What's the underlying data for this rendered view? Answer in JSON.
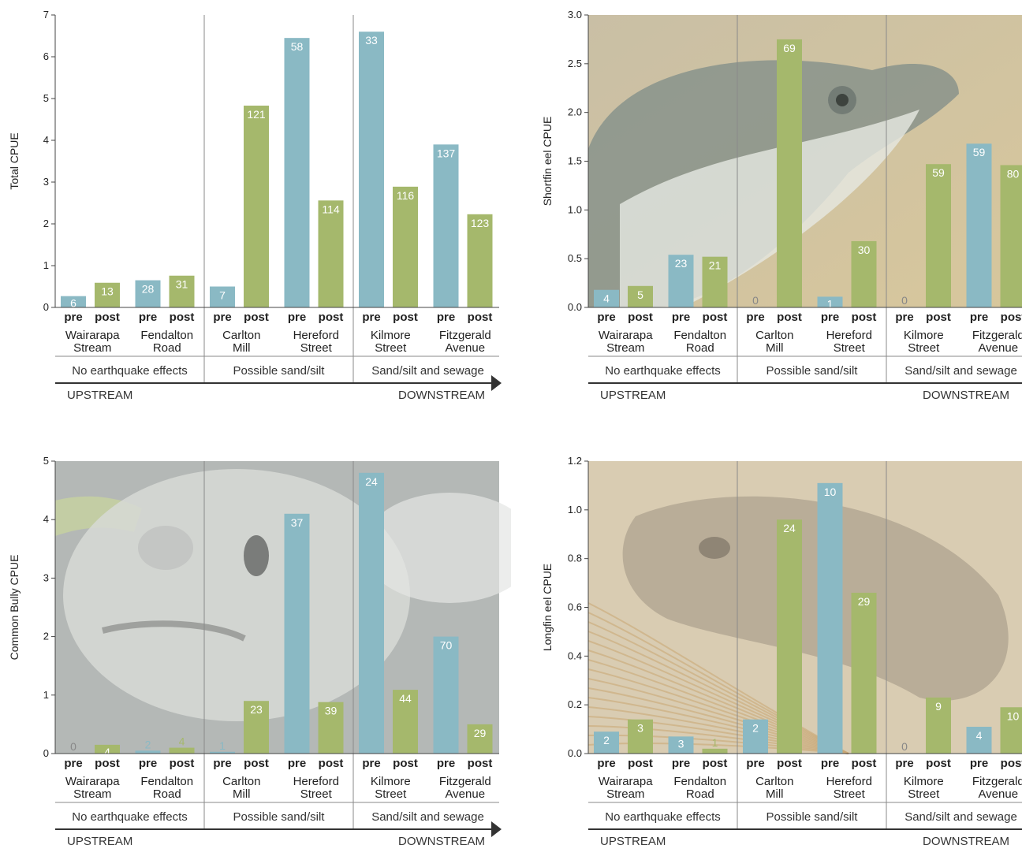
{
  "layout_labels": {
    "pre": "pre",
    "post": "post",
    "sites": [
      [
        "Wairarapa",
        "Stream"
      ],
      [
        "Fendalton",
        "Road"
      ],
      [
        "Carlton",
        "Mill"
      ],
      [
        "Hereford",
        "Street"
      ],
      [
        "Kilmore",
        "Street"
      ],
      [
        "Fitzgerald",
        "Avenue"
      ]
    ],
    "groups": [
      "No earthquake effects",
      "Possible sand/silt",
      "Sand/silt and sewage"
    ],
    "upstream": "UPSTREAM",
    "downstream": "DOWNSTREAM"
  },
  "colors": {
    "pre": "#8ab9c4",
    "post": "#a5b86c",
    "axis": "#444444",
    "divider": "#8a8a8a",
    "tick_text": "#222222",
    "value_text": "#ffffff",
    "zero_value_text": "#888888"
  },
  "chart_data": [
    {
      "type": "bar",
      "id": "total",
      "ylabel": "Total CPUE",
      "ylim": [
        0,
        7
      ],
      "yticks": [
        "0",
        "1",
        "2",
        "3",
        "4",
        "5",
        "6",
        "7"
      ],
      "ytick_values": [
        0,
        1,
        2,
        3,
        4,
        5,
        6,
        7
      ],
      "background_photo": "",
      "categories": [
        "Wairarapa Stream",
        "Fendalton Road",
        "Carlton Mill",
        "Hereford Street",
        "Kilmore Street",
        "Fitzgerald Avenue"
      ],
      "series": [
        {
          "name": "pre",
          "values": [
            0.27,
            0.65,
            0.5,
            6.45,
            6.6,
            3.9
          ],
          "labels": [
            "6",
            "28",
            "7",
            "58",
            "33",
            "137"
          ]
        },
        {
          "name": "post",
          "values": [
            0.59,
            0.76,
            4.83,
            2.56,
            2.89,
            2.23
          ],
          "labels": [
            "13",
            "31",
            "121",
            "114",
            "116",
            "123"
          ]
        }
      ]
    },
    {
      "type": "bar",
      "id": "shortfin",
      "ylabel": "Shortfin eel CPUE",
      "ylim": [
        0,
        3.0
      ],
      "yticks": [
        "0.0",
        "0.5",
        "1.0",
        "1.5",
        "2.0",
        "2.5",
        "3.0"
      ],
      "ytick_values": [
        0,
        0.5,
        1.0,
        1.5,
        2.0,
        2.5,
        3.0
      ],
      "background_photo": "eel-head-photo",
      "categories": [
        "Wairarapa Stream",
        "Fendalton Road",
        "Carlton Mill",
        "Hereford Street",
        "Kilmore Street",
        "Fitzgerald Avenue"
      ],
      "series": [
        {
          "name": "pre",
          "values": [
            0.18,
            0.54,
            0,
            0.11,
            0,
            1.68
          ],
          "labels": [
            "4",
            "23",
            "0",
            "1",
            "0",
            "59"
          ]
        },
        {
          "name": "post",
          "values": [
            0.22,
            0.52,
            2.75,
            0.68,
            1.47,
            1.46
          ],
          "labels": [
            "5",
            "21",
            "69",
            "30",
            "59",
            "80"
          ]
        }
      ]
    },
    {
      "type": "bar",
      "id": "bully",
      "ylabel": "Common Bully CPUE",
      "ylim": [
        0,
        5
      ],
      "yticks": [
        "0",
        "1",
        "2",
        "3",
        "4",
        "5"
      ],
      "ytick_values": [
        0,
        1,
        2,
        3,
        4,
        5
      ],
      "background_photo": "bully-fish-photo",
      "categories": [
        "Wairarapa Stream",
        "Fendalton Road",
        "Carlton Mill",
        "Hereford Street",
        "Kilmore Street",
        "Fitzgerald Avenue"
      ],
      "series": [
        {
          "name": "pre",
          "values": [
            0,
            0.05,
            0.03,
            4.1,
            4.8,
            2.0
          ],
          "labels": [
            "0",
            "2",
            "1",
            "37",
            "24",
            "70"
          ]
        },
        {
          "name": "post",
          "values": [
            0.15,
            0.1,
            0.9,
            0.88,
            1.09,
            0.5
          ],
          "labels": [
            "4",
            "4",
            "23",
            "39",
            "44",
            "29"
          ]
        }
      ]
    },
    {
      "type": "bar",
      "id": "longfin",
      "ylabel": "Longfin eel CPUE",
      "ylim": [
        0,
        1.2
      ],
      "yticks": [
        "0.0",
        "0.2",
        "0.4",
        "0.6",
        "0.8",
        "1.0",
        "1.2"
      ],
      "ytick_values": [
        0,
        0.2,
        0.4,
        0.6,
        0.8,
        1.0,
        1.2
      ],
      "background_photo": "longfin-eel-photo",
      "categories": [
        "Wairarapa Stream",
        "Fendalton Road",
        "Carlton Mill",
        "Hereford Street",
        "Kilmore Street",
        "Fitzgerald Avenue"
      ],
      "series": [
        {
          "name": "pre",
          "values": [
            0.09,
            0.07,
            0.14,
            1.11,
            0,
            0.11
          ],
          "labels": [
            "2",
            "3",
            "2",
            "10",
            "0",
            "4"
          ]
        },
        {
          "name": "post",
          "values": [
            0.14,
            0.02,
            0.96,
            0.66,
            0.23,
            0.19
          ],
          "labels": [
            "3",
            "1",
            "24",
            "29",
            "9",
            "10"
          ]
        }
      ]
    }
  ]
}
